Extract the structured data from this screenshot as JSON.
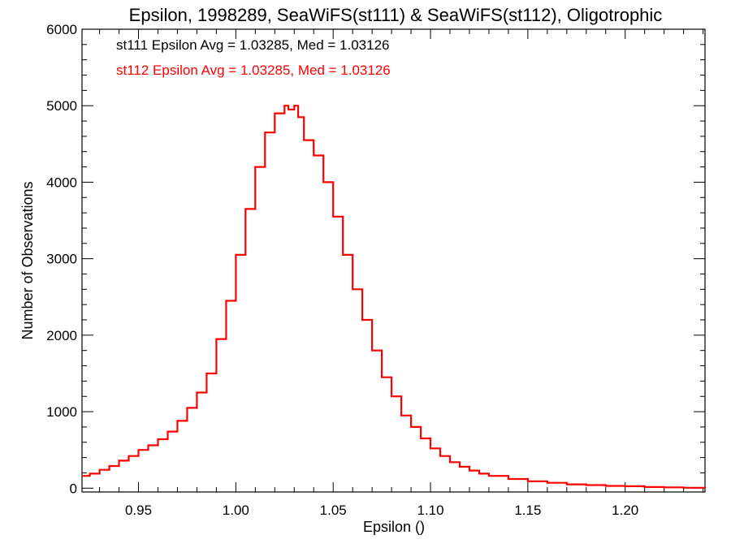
{
  "chart_data": {
    "type": "line",
    "title": "Epsilon, 1998289, SeaWiFS(st111) & SeaWiFS(st112), Oligotrophic",
    "xlabel": "Epsilon ()",
    "ylabel": "Number of Observations",
    "xlim": [
      0.921,
      1.241
    ],
    "ylim": [
      -50,
      6000
    ],
    "xticks": [
      "0.95",
      "1.00",
      "1.05",
      "1.10",
      "1.15",
      "1.20"
    ],
    "yticks": [
      "0",
      "1000",
      "2000",
      "3000",
      "4000",
      "5000",
      "6000"
    ],
    "annotations": [
      {
        "text": "st111 Epsilon Avg = 1.03285, Med = 1.03126",
        "color": "#000000"
      },
      {
        "text": "st112 Epsilon Avg = 1.03285, Med = 1.03126",
        "color": "#ff0000"
      }
    ],
    "series": [
      {
        "name": "st112",
        "color": "#ff0000",
        "step": true,
        "x": [
          0.921,
          0.925,
          0.93,
          0.935,
          0.94,
          0.945,
          0.95,
          0.955,
          0.96,
          0.965,
          0.97,
          0.975,
          0.98,
          0.985,
          0.99,
          0.995,
          1.0,
          1.005,
          1.01,
          1.015,
          1.02,
          1.025,
          1.027,
          1.03,
          1.032,
          1.035,
          1.04,
          1.045,
          1.05,
          1.055,
          1.06,
          1.065,
          1.07,
          1.075,
          1.08,
          1.085,
          1.09,
          1.095,
          1.1,
          1.105,
          1.11,
          1.115,
          1.12,
          1.125,
          1.13,
          1.14,
          1.15,
          1.16,
          1.17,
          1.18,
          1.19,
          1.2,
          1.21,
          1.22,
          1.23,
          1.241
        ],
        "y": [
          160,
          190,
          240,
          290,
          360,
          420,
          500,
          560,
          640,
          740,
          880,
          1050,
          1250,
          1500,
          1950,
          2450,
          3050,
          3650,
          4200,
          4650,
          4900,
          5000,
          4950,
          5000,
          4850,
          4550,
          4350,
          4000,
          3550,
          3050,
          2600,
          2200,
          1800,
          1450,
          1200,
          950,
          800,
          650,
          520,
          420,
          340,
          280,
          230,
          190,
          160,
          120,
          90,
          70,
          50,
          40,
          30,
          25,
          15,
          10,
          5,
          0
        ]
      }
    ]
  }
}
